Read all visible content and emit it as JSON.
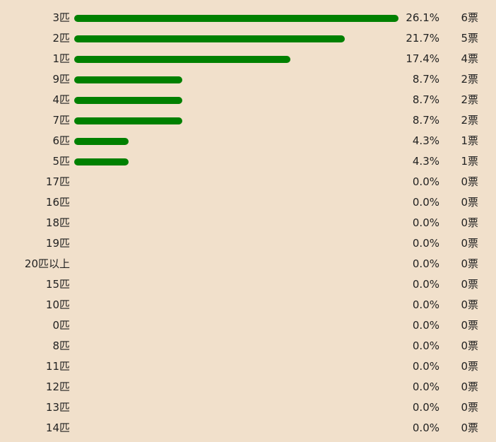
{
  "chart_data": {
    "type": "bar",
    "orientation": "horizontal",
    "bar_color": "#008000",
    "background_color": "#f1e0cb",
    "categories": [
      "3匹",
      "2匹",
      "1匹",
      "9匹",
      "4匹",
      "7匹",
      "6匹",
      "5匹",
      "17匹",
      "16匹",
      "18匹",
      "19匹",
      "20匹以上",
      "15匹",
      "10匹",
      "0匹",
      "8匹",
      "11匹",
      "12匹",
      "13匹",
      "14匹"
    ],
    "percent_labels": [
      "26.1%",
      "21.7%",
      "17.4%",
      "8.7%",
      "8.7%",
      "8.7%",
      "4.3%",
      "4.3%",
      "0.0%",
      "0.0%",
      "0.0%",
      "0.0%",
      "0.0%",
      "0.0%",
      "0.0%",
      "0.0%",
      "0.0%",
      "0.0%",
      "0.0%",
      "0.0%",
      "0.0%"
    ],
    "vote_labels": [
      "6票",
      "5票",
      "4票",
      "2票",
      "2票",
      "2票",
      "1票",
      "1票",
      "0票",
      "0票",
      "0票",
      "0票",
      "0票",
      "0票",
      "0票",
      "0票",
      "0票",
      "0票",
      "0票",
      "0票",
      "0票"
    ],
    "values": [
      6,
      5,
      4,
      2,
      2,
      2,
      1,
      1,
      0,
      0,
      0,
      0,
      0,
      0,
      0,
      0,
      0,
      0,
      0,
      0,
      0
    ],
    "max_value": 6
  }
}
